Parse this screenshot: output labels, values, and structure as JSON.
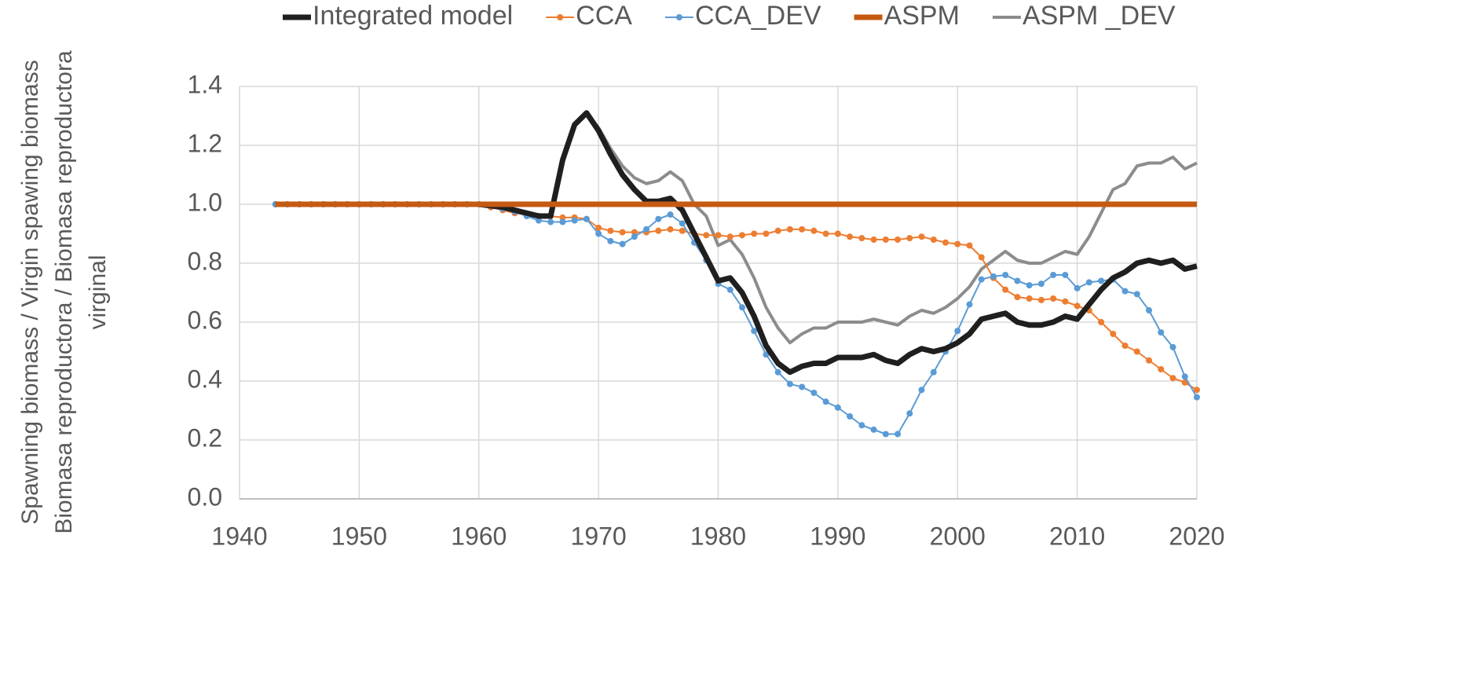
{
  "chart_data": {
    "type": "line",
    "y_label_lines": [
      "Spawning biomass / Virgin spawing biomass",
      "Biomasa reproductora / Biomasa reproductora",
      "virginal"
    ],
    "x": [
      1943,
      1944,
      1945,
      1946,
      1947,
      1948,
      1949,
      1950,
      1951,
      1952,
      1953,
      1954,
      1955,
      1956,
      1957,
      1958,
      1959,
      1960,
      1961,
      1962,
      1963,
      1964,
      1965,
      1966,
      1967,
      1968,
      1969,
      1970,
      1971,
      1972,
      1973,
      1974,
      1975,
      1976,
      1977,
      1978,
      1979,
      1980,
      1981,
      1982,
      1983,
      1984,
      1985,
      1986,
      1987,
      1988,
      1989,
      1990,
      1991,
      1992,
      1993,
      1994,
      1995,
      1996,
      1997,
      1998,
      1999,
      2000,
      2001,
      2002,
      2003,
      2004,
      2005,
      2006,
      2007,
      2008,
      2009,
      2010,
      2011,
      2012,
      2013,
      2014,
      2015,
      2016,
      2017,
      2018,
      2019,
      2020
    ],
    "series": [
      {
        "name": "Integrated model",
        "color": "#1f1f1f",
        "line_style": "thick",
        "markers": false,
        "values": [
          1,
          1,
          1,
          1,
          1,
          1,
          1,
          1,
          1,
          1,
          1,
          1,
          1,
          1,
          1,
          1,
          1,
          1,
          0.995,
          0.99,
          0.98,
          0.97,
          0.96,
          0.96,
          1.15,
          1.27,
          1.31,
          1.25,
          1.17,
          1.1,
          1.05,
          1.01,
          1.01,
          1.02,
          0.98,
          0.9,
          0.82,
          0.74,
          0.75,
          0.7,
          0.62,
          0.52,
          0.46,
          0.43,
          0.45,
          0.46,
          0.46,
          0.48,
          0.48,
          0.48,
          0.49,
          0.47,
          0.46,
          0.49,
          0.51,
          0.5,
          0.51,
          0.53,
          0.56,
          0.61,
          0.62,
          0.63,
          0.6,
          0.59,
          0.59,
          0.6,
          0.62,
          0.61,
          0.66,
          0.71,
          0.75,
          0.77,
          0.8,
          0.81,
          0.8,
          0.81,
          0.78,
          0.79
        ]
      },
      {
        "name": "CCA",
        "color": "#ed7d31",
        "line_style": "thin",
        "markers": true,
        "values": [
          1,
          1,
          1,
          1,
          1,
          1,
          1,
          1,
          1,
          1,
          1,
          1,
          1,
          1,
          1,
          1,
          1,
          1,
          0.99,
          0.98,
          0.97,
          0.965,
          0.96,
          0.96,
          0.955,
          0.955,
          0.95,
          0.92,
          0.91,
          0.905,
          0.905,
          0.905,
          0.91,
          0.915,
          0.91,
          0.9,
          0.895,
          0.895,
          0.89,
          0.895,
          0.9,
          0.9,
          0.91,
          0.915,
          0.915,
          0.91,
          0.9,
          0.9,
          0.89,
          0.885,
          0.88,
          0.88,
          0.88,
          0.885,
          0.89,
          0.88,
          0.87,
          0.865,
          0.86,
          0.82,
          0.75,
          0.71,
          0.685,
          0.68,
          0.675,
          0.68,
          0.67,
          0.655,
          0.64,
          0.6,
          0.56,
          0.52,
          0.5,
          0.47,
          0.44,
          0.41,
          0.395,
          0.37
        ]
      },
      {
        "name": "CCA_DEV",
        "color": "#5b9bd5",
        "line_style": "thin",
        "markers": true,
        "values": [
          1,
          1,
          1,
          1,
          1,
          1,
          1,
          1,
          1,
          1,
          1,
          1,
          1,
          1,
          1,
          1,
          1,
          1,
          0.995,
          0.985,
          0.975,
          0.96,
          0.945,
          0.94,
          0.94,
          0.945,
          0.95,
          0.9,
          0.875,
          0.865,
          0.89,
          0.915,
          0.95,
          0.965,
          0.935,
          0.87,
          0.81,
          0.73,
          0.71,
          0.65,
          0.57,
          0.49,
          0.43,
          0.39,
          0.38,
          0.36,
          0.33,
          0.31,
          0.28,
          0.25,
          0.235,
          0.22,
          0.22,
          0.29,
          0.37,
          0.43,
          0.5,
          0.57,
          0.66,
          0.745,
          0.755,
          0.76,
          0.74,
          0.725,
          0.73,
          0.76,
          0.76,
          0.715,
          0.735,
          0.74,
          0.745,
          0.705,
          0.695,
          0.64,
          0.565,
          0.515,
          0.415,
          0.345
        ]
      },
      {
        "name": "ASPM",
        "color": "#c55a11",
        "line_style": "thick",
        "markers": false,
        "values": [
          1,
          1,
          1,
          1,
          1,
          1,
          1,
          1,
          1,
          1,
          1,
          1,
          1,
          1,
          1,
          1,
          1,
          1,
          1,
          1,
          1,
          1,
          1,
          1,
          1,
          1,
          1,
          1,
          1,
          1,
          1,
          1,
          1,
          1,
          1,
          1,
          1,
          1,
          1,
          1,
          1,
          1,
          1,
          1,
          1,
          1,
          1,
          1,
          1,
          1,
          1,
          1,
          1,
          1,
          1,
          1,
          1,
          1,
          1,
          1,
          1,
          1,
          1,
          1,
          1,
          1,
          1,
          1,
          1,
          1,
          1,
          1,
          1,
          1,
          1,
          1,
          1,
          1
        ]
      },
      {
        "name": "ASPM _DEV",
        "color": "#8c8c8c",
        "line_style": "medium",
        "markers": false,
        "values": [
          1,
          1,
          1,
          1,
          1,
          1,
          1,
          1,
          1,
          1,
          1,
          1,
          1,
          1,
          1,
          1,
          1,
          1,
          0.995,
          0.99,
          0.98,
          0.97,
          0.96,
          0.96,
          1.15,
          1.27,
          1.31,
          1.26,
          1.19,
          1.13,
          1.09,
          1.07,
          1.08,
          1.11,
          1.08,
          1.0,
          0.96,
          0.86,
          0.88,
          0.83,
          0.75,
          0.65,
          0.58,
          0.53,
          0.56,
          0.58,
          0.58,
          0.6,
          0.6,
          0.6,
          0.61,
          0.6,
          0.59,
          0.62,
          0.64,
          0.63,
          0.65,
          0.68,
          0.72,
          0.78,
          0.81,
          0.84,
          0.81,
          0.8,
          0.8,
          0.82,
          0.84,
          0.83,
          0.89,
          0.97,
          1.05,
          1.07,
          1.13,
          1.14,
          1.14,
          1.16,
          1.12,
          1.14
        ]
      }
    ],
    "xlim": [
      1940,
      2020
    ],
    "xticks": [
      1940,
      1950,
      1960,
      1970,
      1980,
      1990,
      2000,
      2010,
      2020
    ],
    "ylim": [
      0,
      1.4
    ],
    "yticks": [
      {
        "value": 0,
        "label": "0.0"
      },
      0.2,
      0.4,
      0.6,
      0.8,
      {
        "value": 1,
        "label": "1.0"
      },
      1.2,
      1.4
    ],
    "grid": true,
    "legend": "top"
  }
}
